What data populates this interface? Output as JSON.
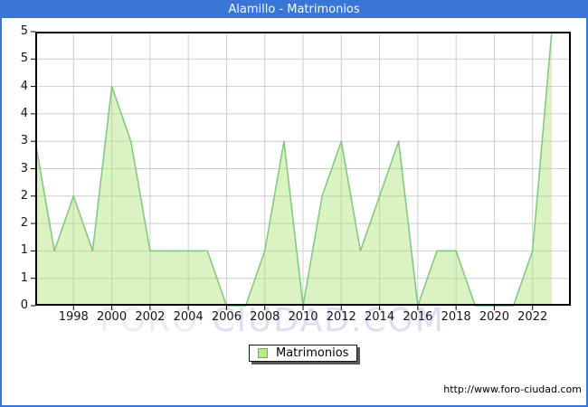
{
  "window": {
    "title": "Alamillo - Matrimonios",
    "footer_url": "http://www.foro-ciudad.com"
  },
  "watermark": {
    "left_text": "FORO",
    "right_text": "CIUDAD.COM"
  },
  "legend": {
    "label": "Matrimonios"
  },
  "colors": {
    "titlebar_blue": "#3a76d8",
    "plot_border": "#000000",
    "gridline": "#cdcdcd",
    "line_green": "#7dc87d",
    "fill_green": "#aae16e",
    "legend_swatch_fill": "#b9ec86",
    "legend_swatch_border": "#78a85c",
    "watermark_gray": "#ededed",
    "watermark_lavender": "#dedef2"
  },
  "chart_data": {
    "type": "area",
    "title": "Alamillo - Matrimonios",
    "series_name": "Matrimonios",
    "x": [
      1996,
      1997,
      1998,
      1999,
      2000,
      2001,
      2002,
      2003,
      2004,
      2005,
      2006,
      2007,
      2008,
      2009,
      2010,
      2011,
      2012,
      2013,
      2014,
      2015,
      2016,
      2017,
      2018,
      2019,
      2020,
      2021,
      2022,
      2023
    ],
    "values": [
      3,
      1,
      2,
      1,
      4,
      3,
      1,
      1,
      1,
      1,
      0,
      0,
      1,
      3,
      0,
      2,
      3,
      1,
      2,
      3,
      0,
      1,
      1,
      0,
      0,
      0,
      1,
      5
    ],
    "ylim": [
      0,
      5
    ],
    "xlim": [
      1996,
      2024
    ],
    "ytick_values": [
      5,
      4.5,
      4,
      3.5,
      3,
      2.5,
      2,
      1.5,
      1,
      0.5,
      0
    ],
    "ytick_labels": [
      "5",
      "5",
      "4",
      "4",
      "3",
      "3",
      "2",
      "2",
      "1",
      "1",
      "0"
    ],
    "xtick_years": [
      1998,
      2000,
      2002,
      2004,
      2006,
      2008,
      2010,
      2012,
      2014,
      2016,
      2018,
      2020,
      2022
    ],
    "grid": true,
    "legend_position": "bottom-center"
  }
}
